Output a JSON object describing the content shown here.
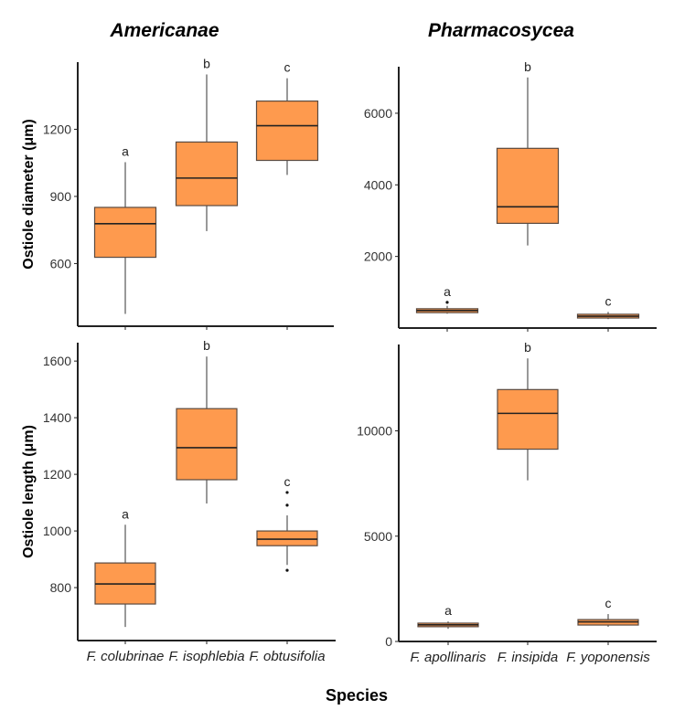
{
  "chart_data": [
    {
      "type": "box",
      "title": "Americanae",
      "ylabel": "Ostiole diameter (μm)",
      "xlabel": "",
      "ylim": [
        320,
        1500
      ],
      "yticks": [
        600,
        900,
        1200
      ],
      "categories": [
        "F. colubrinae",
        "F. isophlebia",
        "F. obtusifolia"
      ],
      "show_category_labels": false,
      "boxes": [
        {
          "whisker_low": 375,
          "q1": 628,
          "median": 778,
          "q3": 851,
          "whisker_high": 1053,
          "outliers": [],
          "letter": "a"
        },
        {
          "whisker_low": 745,
          "q1": 859,
          "median": 982,
          "q3": 1143,
          "whisker_high": 1445,
          "outliers": [],
          "letter": "b"
        },
        {
          "whisker_low": 996,
          "q1": 1061,
          "median": 1216,
          "q3": 1326,
          "whisker_high": 1428,
          "outliers": [],
          "letter": "c"
        }
      ]
    },
    {
      "type": "box",
      "title": "Pharmacosycea",
      "ylabel": "",
      "xlabel": "",
      "ylim": [
        0,
        7300
      ],
      "yticks": [
        2000,
        4000,
        6000
      ],
      "categories": [
        "F. apollinaris",
        "F. insipida",
        "F. yoponensis"
      ],
      "show_category_labels": false,
      "boxes": [
        {
          "whisker_low": 400,
          "q1": 430,
          "median": 490,
          "q3": 540,
          "whisker_high": 620,
          "outliers": [
            717
          ],
          "letter": "a"
        },
        {
          "whisker_low": 2307,
          "q1": 2925,
          "median": 3386,
          "q3": 5020,
          "whisker_high": 7000,
          "outliers": [],
          "letter": "b"
        },
        {
          "whisker_low": 250,
          "q1": 280,
          "median": 330,
          "q3": 385,
          "whisker_high": 450,
          "outliers": [],
          "letter": "c"
        }
      ]
    },
    {
      "type": "box",
      "title": "",
      "ylabel": "Ostiole length (μm)",
      "xlabel": "",
      "ylim": [
        613,
        1665
      ],
      "yticks": [
        800,
        1000,
        1200,
        1400,
        1600
      ],
      "categories": [
        "F. colubrinae",
        "F. isophlebia",
        "F. obtusifolia"
      ],
      "show_category_labels": true,
      "boxes": [
        {
          "whisker_low": 661,
          "q1": 742,
          "median": 813,
          "q3": 887,
          "whisker_high": 1022,
          "outliers": [],
          "letter": "a"
        },
        {
          "whisker_low": 1097,
          "q1": 1181,
          "median": 1294,
          "q3": 1432,
          "whisker_high": 1616,
          "outliers": [],
          "letter": "b"
        },
        {
          "whisker_low": 880,
          "q1": 948,
          "median": 971,
          "q3": 1000,
          "whisker_high": 1055,
          "outliers": [
            1136,
            1091,
            861
          ],
          "letter": "c"
        }
      ]
    },
    {
      "type": "box",
      "title": "",
      "ylabel": "",
      "xlabel": "",
      "ylim": [
        0,
        14100
      ],
      "yticks": [
        0,
        5000,
        10000
      ],
      "categories": [
        "F. apollinaris",
        "F. insipida",
        "F. yoponensis"
      ],
      "show_category_labels": true,
      "boxes": [
        {
          "whisker_low": 600,
          "q1": 700,
          "median": 790,
          "q3": 870,
          "whisker_high": 950,
          "outliers": [],
          "letter": "a"
        },
        {
          "whisker_low": 7650,
          "q1": 9130,
          "median": 10830,
          "q3": 11960,
          "whisker_high": 13440,
          "outliers": [],
          "letter": "b"
        },
        {
          "whisker_low": 700,
          "q1": 780,
          "median": 930,
          "q3": 1040,
          "whisker_high": 1300,
          "outliers": [],
          "letter": "c"
        }
      ]
    }
  ],
  "shared_xlabel": "Species",
  "colors": {
    "box_fill": "#FE9A4E",
    "box_stroke": "#5a4a40",
    "whisker": "#777777",
    "median": "#222222",
    "axis": "#222222"
  }
}
